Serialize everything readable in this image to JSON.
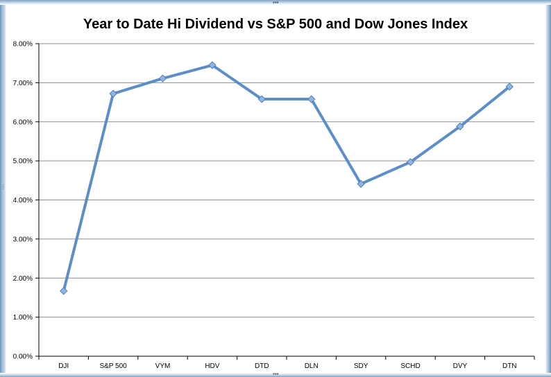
{
  "chart_data": {
    "type": "line",
    "title": "Year to Date Hi Dividend vs S&P 500 and Dow Jones Index",
    "xlabel": "",
    "ylabel": "",
    "categories": [
      "DJI",
      "S&P 500",
      "VYM",
      "HDV",
      "DTD",
      "DLN",
      "SDY",
      "SCHD",
      "DVY",
      "DTN"
    ],
    "series": [
      {
        "values": [
          1.67,
          6.72,
          7.11,
          7.45,
          6.58,
          6.58,
          4.41,
          4.97,
          5.88,
          6.9
        ]
      }
    ],
    "y_ticks": [
      "0.00%",
      "1.00%",
      "2.00%",
      "3.00%",
      "4.00%",
      "5.00%",
      "6.00%",
      "7.00%",
      "8.00%"
    ],
    "ylim": [
      0,
      8
    ],
    "grid": true,
    "line_color": "#5b8ec7",
    "marker": "diamond"
  }
}
